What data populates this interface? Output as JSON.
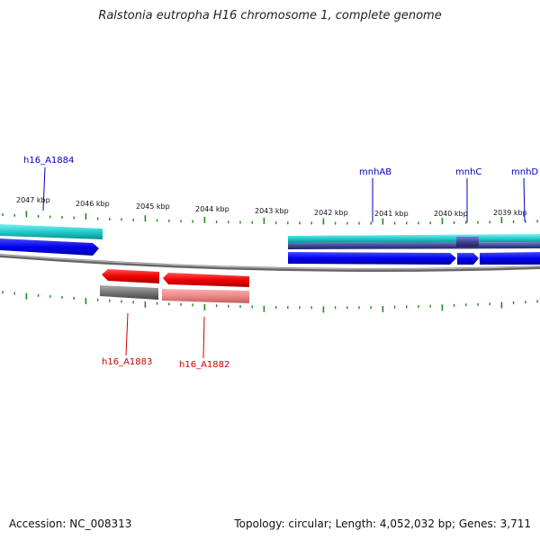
{
  "title": "Ralstonia eutropha H16 chromosome 1, complete genome",
  "accession": "Accession: NC_008313",
  "topology": "Topology: circular; Length: 4,052,032 bp; Genes: 3,711",
  "ticks": [
    "2047 kbp",
    "2046 kbp",
    "2045 kbp",
    "2044 kbp",
    "2043 kbp",
    "2042 kbp",
    "2041 kbp",
    "2040 kbp",
    "2039 kbp"
  ],
  "top_labels": [
    "h16_A1884",
    "mnhAB",
    "mnhC",
    "mnhD"
  ],
  "bottom_labels": [
    "h16_A1883",
    "h16_A1882"
  ],
  "colors": {
    "forward_cds": "#0000ee",
    "reverse_cds": "#ee0000",
    "gene_top": "#33dddd",
    "gene_bottom": "#888888",
    "gene_light": "#ee8888",
    "tick": "#228822",
    "label_top": "#0000bb",
    "label_bottom": "#cc0000"
  }
}
